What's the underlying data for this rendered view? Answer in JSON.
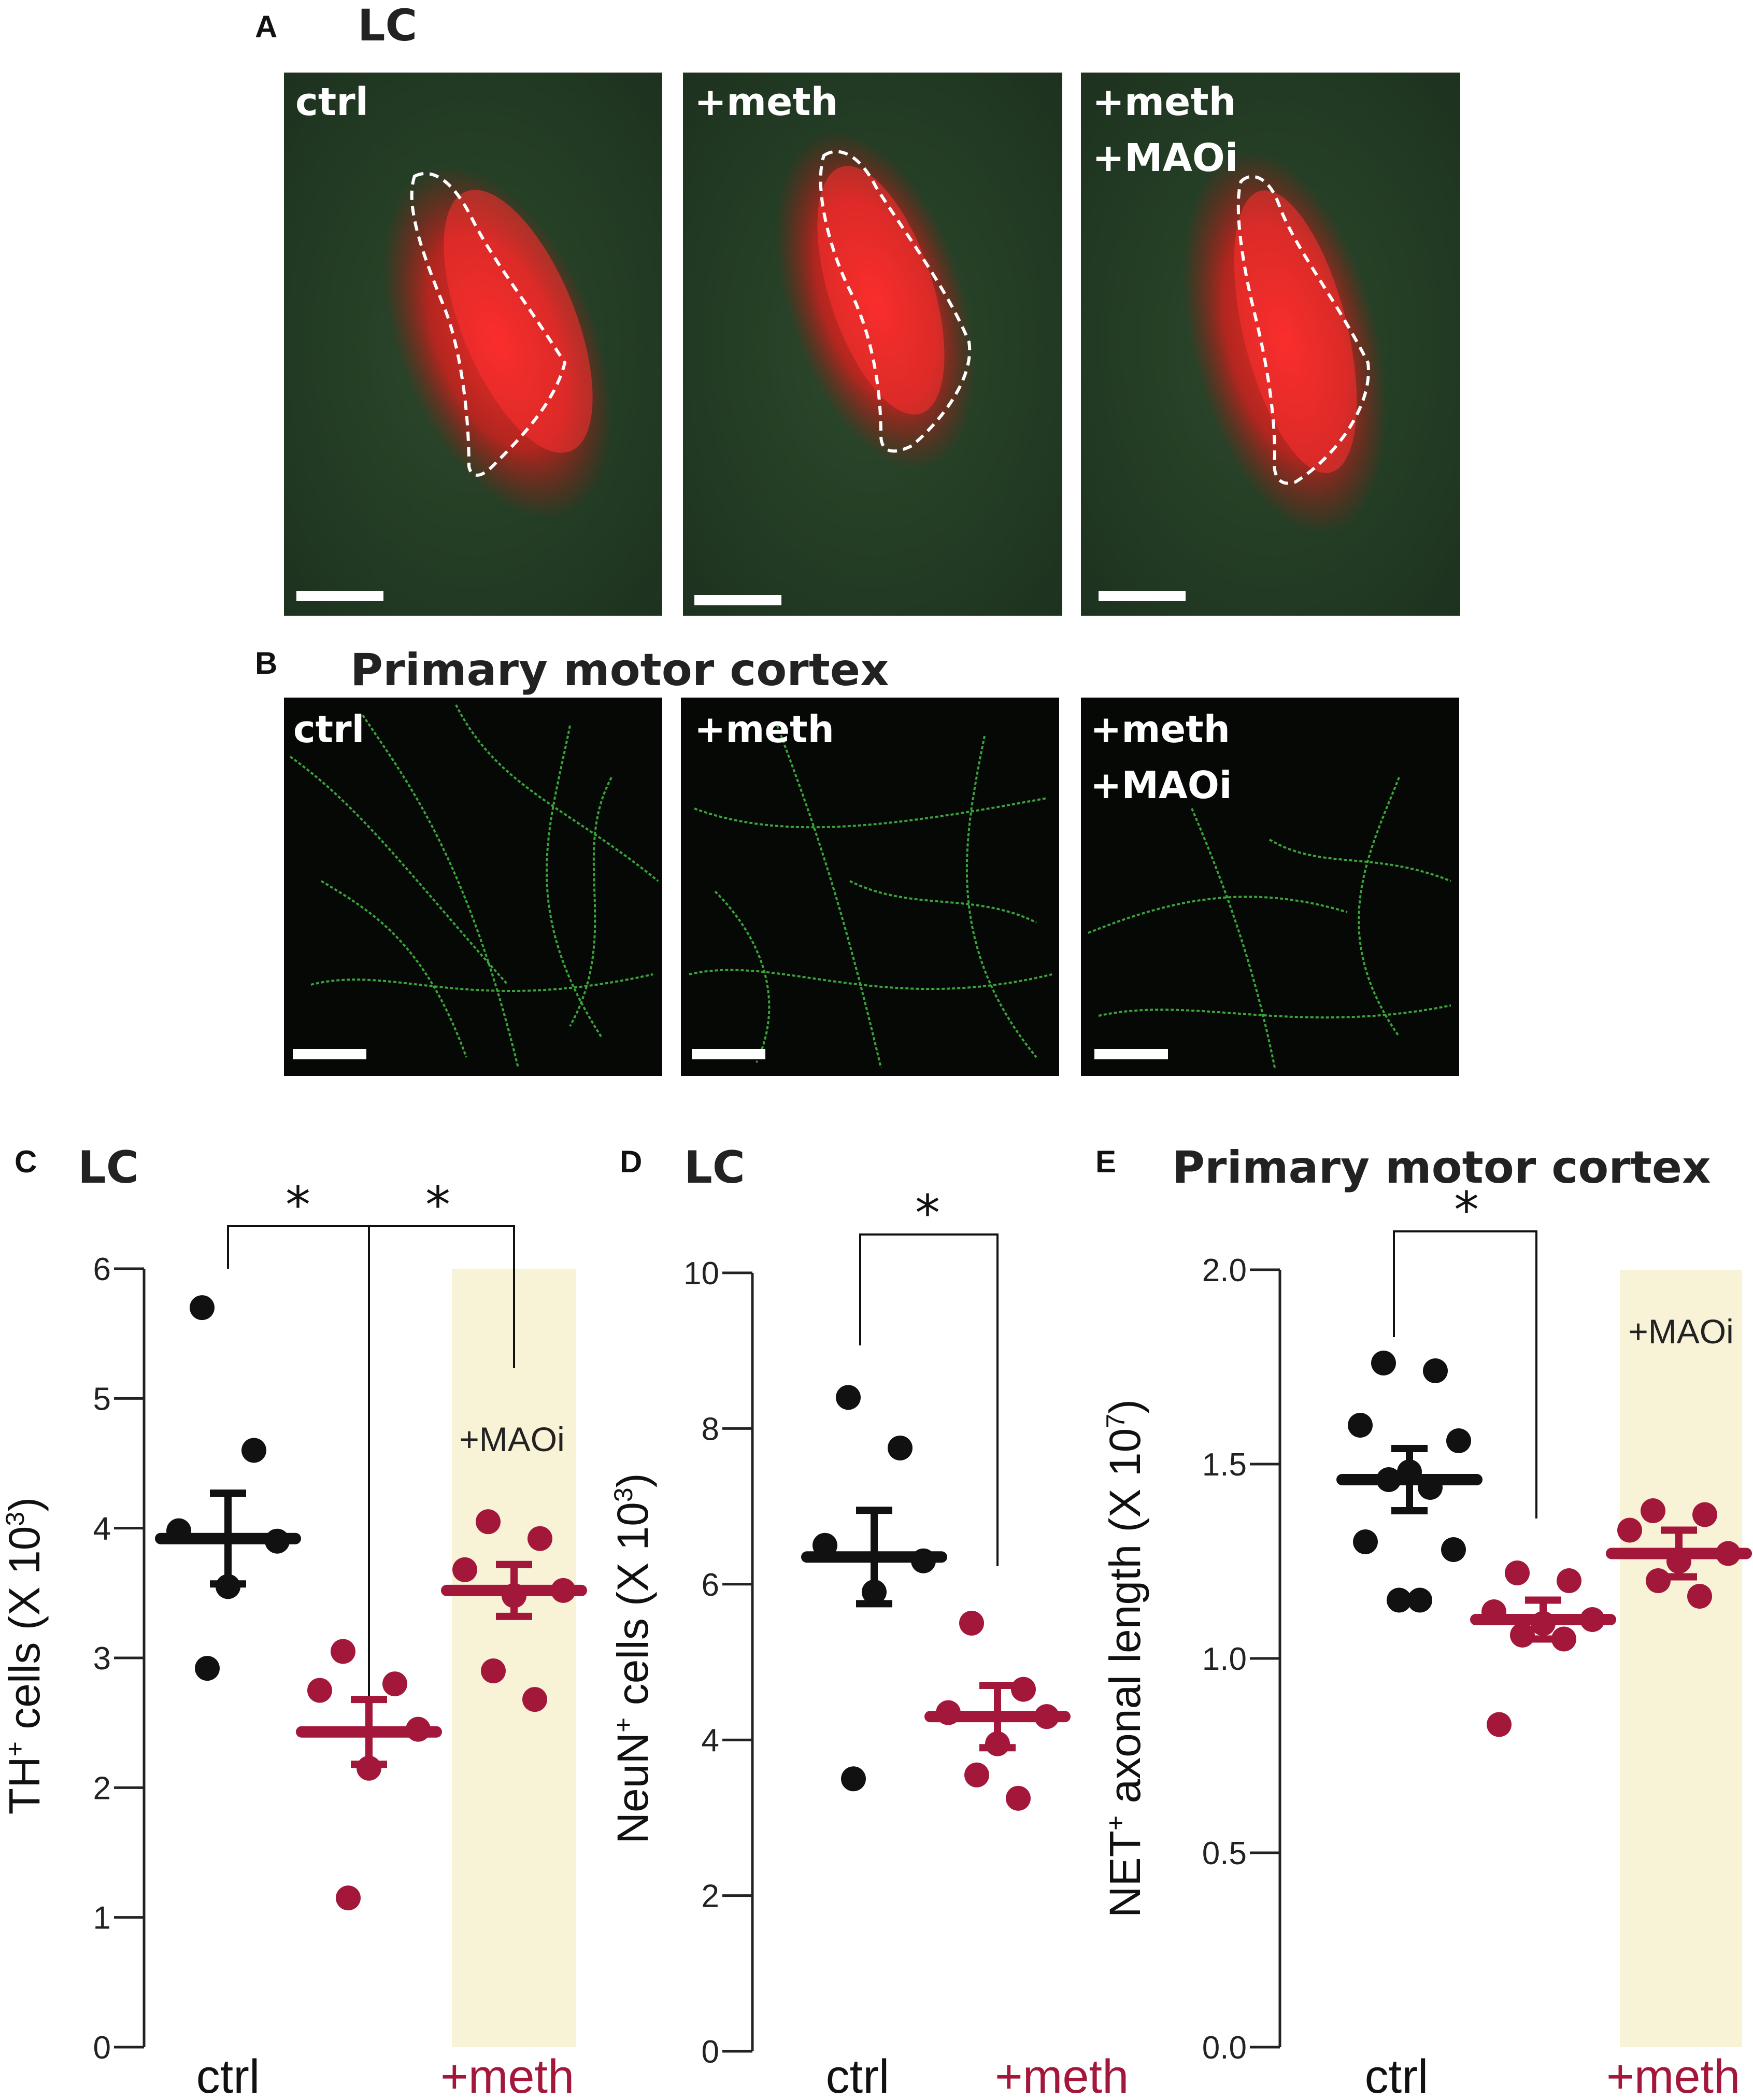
{
  "colors": {
    "ctrl": "#111111",
    "meth": "#a3173a",
    "maoi_band": "#f8f2d6",
    "axis": "#222222"
  },
  "panelA": {
    "label": "A",
    "title": "LC",
    "images": [
      {
        "label_lines": [
          "ctrl"
        ]
      },
      {
        "label_lines": [
          "+meth"
        ]
      },
      {
        "label_lines": [
          "+meth",
          "+MAOi"
        ]
      }
    ]
  },
  "panelB": {
    "label": "B",
    "title": "Primary motor cortex",
    "images": [
      {
        "label_lines": [
          "ctrl"
        ]
      },
      {
        "label_lines": [
          "+meth"
        ]
      },
      {
        "label_lines": [
          "+meth",
          "+MAOi"
        ]
      }
    ]
  },
  "chart_data": [
    {
      "panel": "C",
      "title": "LC",
      "type": "scatter",
      "ylabel_parts": [
        "TH",
        "+",
        " cells (X 10",
        "3",
        ")"
      ],
      "ylim": [
        0,
        6
      ],
      "yticks": [
        "0",
        "1",
        "2",
        "3",
        "4",
        "5",
        "6"
      ],
      "tick_values": [
        0,
        1,
        2,
        3,
        4,
        5,
        6
      ],
      "categories": [
        "ctrl",
        "+meth",
        ""
      ],
      "maoi_band_label": "+MAOi",
      "significance": [
        "*",
        "*"
      ],
      "series": [
        {
          "group": "ctrl",
          "color": "ctrl",
          "mean": 3.92,
          "sem": 0.35,
          "points": [
            5.7,
            4.6,
            3.98,
            3.9,
            3.55,
            2.92
          ]
        },
        {
          "group": "+meth",
          "color": "meth",
          "mean": 2.43,
          "sem": 0.25,
          "points": [
            3.05,
            2.8,
            2.75,
            2.45,
            2.15,
            1.15
          ]
        },
        {
          "group": "+meth +MAOi",
          "color": "meth",
          "mean": 3.52,
          "sem": 0.2,
          "points": [
            4.05,
            3.92,
            3.68,
            3.52,
            3.48,
            2.9,
            2.68
          ]
        }
      ]
    },
    {
      "panel": "D",
      "title": "LC",
      "type": "scatter",
      "ylabel_parts": [
        "NeuN",
        "+",
        " cells (X 10",
        "3",
        ")"
      ],
      "ylim": [
        0,
        10
      ],
      "yticks": [
        "0",
        "2",
        "4",
        "6",
        "8",
        "10"
      ],
      "tick_values": [
        0,
        2,
        4,
        6,
        8,
        10
      ],
      "categories": [
        "ctrl",
        "+meth"
      ],
      "significance": [
        "*"
      ],
      "series": [
        {
          "group": "ctrl",
          "color": "ctrl",
          "mean": 6.35,
          "sem": 0.6,
          "points": [
            8.4,
            7.75,
            6.5,
            6.3,
            5.9,
            3.5
          ]
        },
        {
          "group": "+meth",
          "color": "meth",
          "mean": 4.3,
          "sem": 0.4,
          "points": [
            5.5,
            4.65,
            4.35,
            4.3,
            3.95,
            3.55,
            3.25
          ]
        }
      ]
    },
    {
      "panel": "E",
      "title": "Primary motor cortex",
      "type": "scatter",
      "ylabel_parts": [
        "NET",
        "+",
        " axonal length (X 10",
        "7",
        ")"
      ],
      "ylim": [
        0,
        2
      ],
      "yticks": [
        "0.0",
        "0.5",
        "1.0",
        "1.5",
        "2.0"
      ],
      "tick_values": [
        0,
        0.5,
        1.0,
        1.5,
        2.0
      ],
      "categories": [
        "ctrl",
        "+meth",
        ""
      ],
      "maoi_band_label": "+MAOi",
      "significance": [
        "*"
      ],
      "series": [
        {
          "group": "ctrl",
          "color": "ctrl",
          "mean": 1.46,
          "sem": 0.08,
          "points": [
            1.76,
            1.74,
            1.6,
            1.56,
            1.48,
            1.46,
            1.44,
            1.3,
            1.28,
            1.15,
            1.15
          ]
        },
        {
          "group": "+meth",
          "color": "meth",
          "mean": 1.1,
          "sem": 0.05,
          "points": [
            1.22,
            1.2,
            1.12,
            1.1,
            1.09,
            1.06,
            1.05,
            0.83
          ]
        },
        {
          "group": "+meth +MAOi",
          "color": "meth",
          "mean": 1.27,
          "sem": 0.06,
          "points": [
            1.38,
            1.37,
            1.33,
            1.27,
            1.25,
            1.2,
            1.16
          ]
        }
      ]
    }
  ]
}
